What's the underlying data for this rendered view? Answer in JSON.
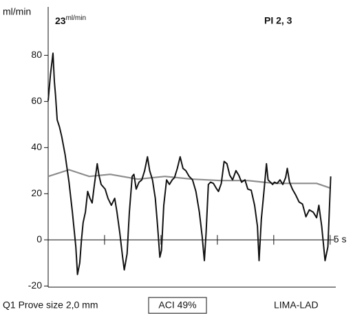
{
  "chart_data": {
    "type": "line",
    "y_label": "ml/min",
    "flow_value": 23,
    "flow_unit": "ml/min",
    "pi_label": "PI 2, 3",
    "probe_label": "Q1 Prove size 2,0 mm",
    "aci_label": "ACI 49%",
    "vessel_label": "LIMA-LAD",
    "xlim": [
      0,
      5.1
    ],
    "xticks": [
      {
        "value": 1,
        "label": null
      },
      {
        "value": 2,
        "label": null
      },
      {
        "value": 3,
        "label": null
      },
      {
        "value": 4,
        "label": null
      },
      {
        "value": 5,
        "label": "5 s"
      }
    ],
    "ylim": [
      -20.5,
      101
    ],
    "yticks": [
      -20,
      0,
      20,
      40,
      60,
      80
    ],
    "series": [
      {
        "color": "#111111",
        "x": [
          0,
          0.04,
          0.085,
          0.11,
          0.13,
          0.16,
          0.2,
          0.24,
          0.3,
          0.37,
          0.43,
          0.49,
          0.52,
          0.56,
          0.59,
          0.62,
          0.66,
          0.7,
          0.74,
          0.78,
          0.82,
          0.87,
          0.9,
          0.94,
          1.01,
          1.06,
          1.12,
          1.18,
          1.22,
          1.27,
          1.32,
          1.35,
          1.4,
          1.44,
          1.49,
          1.52,
          1.56,
          1.61,
          1.66,
          1.71,
          1.76,
          1.8,
          1.85,
          1.9,
          1.94,
          1.98,
          2.01,
          2.05,
          2.1,
          2.15,
          2.2,
          2.24,
          2.29,
          2.34,
          2.39,
          2.44,
          2.5,
          2.56,
          2.62,
          2.68,
          2.73,
          2.77,
          2.8,
          2.84,
          2.88,
          2.93,
          2.98,
          3.02,
          3.07,
          3.12,
          3.17,
          3.22,
          3.27,
          3.33,
          3.38,
          3.43,
          3.49,
          3.54,
          3.6,
          3.66,
          3.71,
          3.74,
          3.78,
          3.83,
          3.87,
          3.9,
          3.94,
          3.98,
          4.01,
          4.06,
          4.11,
          4.16,
          4.21,
          4.24,
          4.28,
          4.33,
          4.39,
          4.45,
          4.51,
          4.57,
          4.63,
          4.7,
          4.76,
          4.8,
          4.85,
          4.91,
          4.96,
          5.01
        ],
        "values": [
          60.3,
          71.6,
          80.9,
          68.7,
          62.7,
          52,
          49,
          44.8,
          37,
          25,
          12,
          -3,
          -15,
          -10,
          0,
          7.5,
          12,
          21,
          18,
          16,
          24,
          33,
          28,
          24,
          22,
          18,
          15,
          18,
          12,
          3,
          -7.5,
          -13,
          -6,
          12,
          27.5,
          28.4,
          22,
          25,
          26,
          30,
          36,
          30,
          26,
          18,
          6,
          -7.5,
          -4.5,
          15,
          26,
          24,
          26,
          27,
          31,
          36,
          31,
          30,
          27.5,
          26,
          21,
          12,
          1.5,
          -9,
          3,
          24,
          25,
          24.5,
          22.4,
          21,
          24.5,
          34,
          33,
          28,
          26,
          30,
          28,
          25,
          26,
          22,
          21.5,
          15,
          6,
          -9,
          9,
          22,
          33,
          26,
          25,
          24,
          25,
          24.5,
          26,
          24,
          27,
          31,
          25,
          22,
          19.4,
          16.4,
          15.5,
          10,
          13,
          12,
          9.6,
          15,
          6,
          -9,
          -3,
          27.5
        ]
      },
      {
        "color": "#8c8c8c",
        "x": [
          0,
          0.37,
          0.73,
          1.1,
          1.59,
          2.07,
          2.56,
          3.05,
          3.54,
          4.02,
          4.51,
          4.76,
          5.01
        ],
        "values": [
          27.5,
          30.4,
          27.5,
          28.4,
          26.3,
          27.5,
          26.3,
          25.7,
          25.7,
          24.5,
          24.5,
          24.5,
          22.4
        ]
      }
    ]
  }
}
